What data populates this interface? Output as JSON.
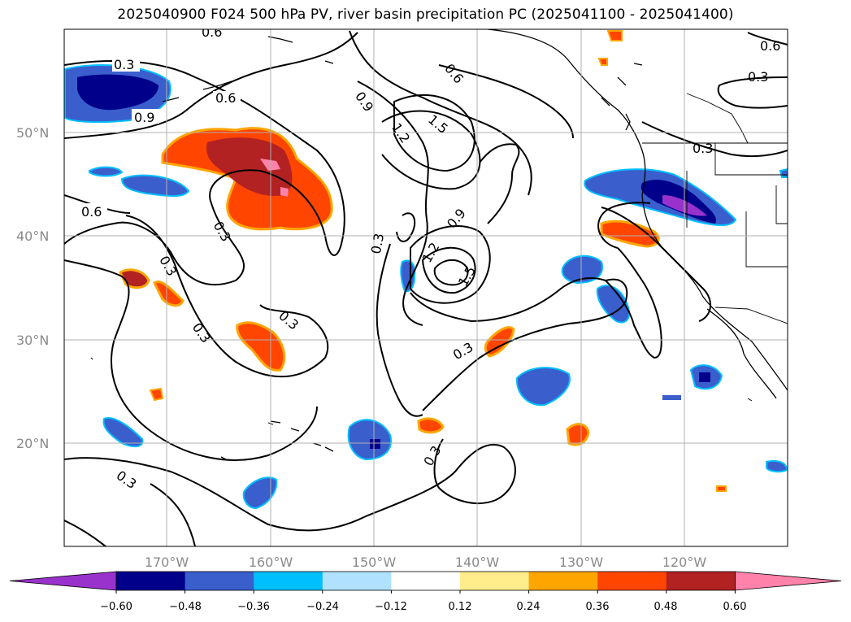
{
  "title": "2025040900 F024 500 hPa PV, river basin precipitation PC (2025041100 - 2025041400)",
  "map": {
    "lat_labels": [
      "50°N",
      "40°N",
      "30°N",
      "20°N"
    ],
    "lon_labels": [
      "170°W",
      "160°W",
      "150°W",
      "140°W",
      "130°W",
      "120°W"
    ],
    "contour_labels": [
      "0.3",
      "0.6",
      "0.9",
      "0.9",
      "1.2",
      "1.5",
      "0.6",
      "0.3",
      "0.3",
      "0.6",
      "0.6",
      "0.3",
      "0.3",
      "0.9",
      "1.2",
      "1.5",
      "0.3",
      "0.3",
      "0.3",
      "0.3",
      "0.3",
      "0.3",
      "0.6"
    ],
    "grid": true
  },
  "colorbar": {
    "ticks": [
      "−0.60",
      "−0.48",
      "−0.36",
      "−0.24",
      "−0.12",
      "0.12",
      "0.24",
      "0.36",
      "0.48",
      "0.60"
    ],
    "colors": [
      "#9932cc",
      "#00008b",
      "#3a5fcd",
      "#00bfff",
      "#b0e2ff",
      "#ffffff",
      "#ffec8b",
      "#ffa500",
      "#ff4500",
      "#b22222",
      "#ff82ab"
    ]
  }
}
